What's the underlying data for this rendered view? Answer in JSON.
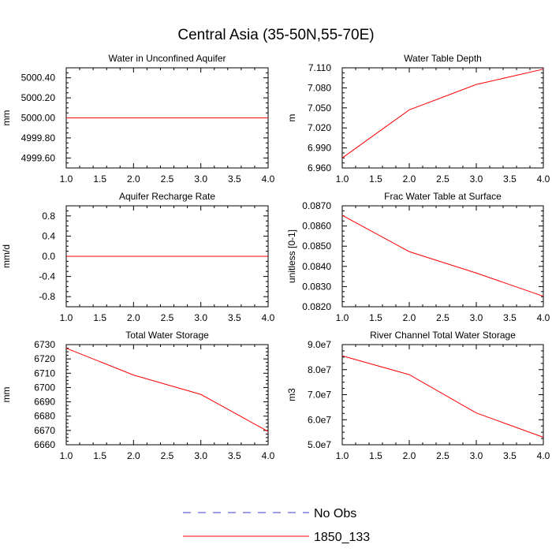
{
  "title": "Central Asia (35-50N,55-70E)",
  "legend": {
    "position": "bottom-center",
    "items": [
      {
        "label": "No Obs",
        "color": "#3a3acf",
        "dash": "dashed"
      },
      {
        "label": "1850_133",
        "color": "#ff0000",
        "dash": "solid"
      }
    ]
  },
  "chart_data": [
    {
      "type": "line",
      "title": "Water in Unconfined Aquifer",
      "ylabel": "mm",
      "x": [
        1.0,
        2.0,
        3.0,
        4.0
      ],
      "xlim": [
        1.0,
        4.0
      ],
      "xticks": [
        "1.0",
        "1.5",
        "2.0",
        "2.5",
        "3.0",
        "3.5",
        "4.0"
      ],
      "ylim": [
        4999.5,
        5000.5
      ],
      "yticks": [
        "5000.40",
        "5000.20",
        "5000.00",
        "4999.80",
        "4999.60"
      ],
      "series": [
        {
          "name": "1850_133",
          "color": "#ff0000",
          "values": [
            5000.0,
            5000.0,
            5000.0,
            5000.0
          ]
        }
      ]
    },
    {
      "type": "line",
      "title": "Water Table Depth",
      "ylabel": "m",
      "x": [
        1.0,
        2.0,
        3.0,
        4.0
      ],
      "xlim": [
        1.0,
        4.0
      ],
      "xticks": [
        "1.0",
        "1.5",
        "2.0",
        "2.5",
        "3.0",
        "3.5",
        "4.0"
      ],
      "ylim": [
        6.96,
        7.11
      ],
      "yticks": [
        "7.110",
        "7.080",
        "7.050",
        "7.020",
        "6.990",
        "6.960"
      ],
      "series": [
        {
          "name": "1850_133",
          "color": "#ff0000",
          "values": [
            6.975,
            7.047,
            7.085,
            7.108
          ]
        }
      ]
    },
    {
      "type": "line",
      "title": "Aquifer Recharge Rate",
      "ylabel": "mm/d",
      "x": [
        1.0,
        2.0,
        3.0,
        4.0
      ],
      "xlim": [
        1.0,
        4.0
      ],
      "xticks": [
        "1.0",
        "1.5",
        "2.0",
        "2.5",
        "3.0",
        "3.5",
        "4.0"
      ],
      "ylim": [
        -1.0,
        1.0
      ],
      "yticks": [
        "0.8",
        "0.4",
        "0.0",
        "-0.4",
        "-0.8"
      ],
      "series": [
        {
          "name": "1850_133",
          "color": "#ff0000",
          "values": [
            0.0,
            0.0,
            0.0,
            0.0
          ]
        }
      ]
    },
    {
      "type": "line",
      "title": "Frac Water Table at Surface",
      "ylabel": "unitless [0-1]",
      "x": [
        1.0,
        2.0,
        3.0,
        4.0
      ],
      "xlim": [
        1.0,
        4.0
      ],
      "xticks": [
        "1.0",
        "1.5",
        "2.0",
        "2.5",
        "3.0",
        "3.5",
        "4.0"
      ],
      "ylim": [
        0.082,
        0.087
      ],
      "yticks": [
        "0.0870",
        "0.0860",
        "0.0850",
        "0.0840",
        "0.0830",
        "0.0820"
      ],
      "series": [
        {
          "name": "1850_133",
          "color": "#ff0000",
          "values": [
            0.08653,
            0.08473,
            0.08367,
            0.08252
          ]
        }
      ]
    },
    {
      "type": "line",
      "title": "Total Water Storage",
      "ylabel": "mm",
      "x": [
        1.0,
        2.0,
        3.0,
        4.0
      ],
      "xlim": [
        1.0,
        4.0
      ],
      "xticks": [
        "1.0",
        "1.5",
        "2.0",
        "2.5",
        "3.0",
        "3.5",
        "4.0"
      ],
      "ylim": [
        6660,
        6730
      ],
      "yticks": [
        "6730",
        "6720",
        "6710",
        "6700",
        "6690",
        "6680",
        "6670",
        "6660"
      ],
      "series": [
        {
          "name": "1850_133",
          "color": "#ff0000",
          "values": [
            6727.5,
            6708.7,
            6695.2,
            6669.3
          ]
        }
      ]
    },
    {
      "type": "line",
      "title": "River Channel Total Water Storage",
      "ylabel": "m3",
      "x": [
        1.0,
        2.0,
        3.0,
        4.0
      ],
      "xlim": [
        1.0,
        4.0
      ],
      "xticks": [
        "1.0",
        "1.5",
        "2.0",
        "2.5",
        "3.0",
        "3.5",
        "4.0"
      ],
      "ylim": [
        50000000,
        90000000
      ],
      "yticks": [
        "9.0e7",
        "8.0e7",
        "7.0e7",
        "6.0e7",
        "5.0e7"
      ],
      "series": [
        {
          "name": "1850_133",
          "color": "#ff0000",
          "values": [
            85500000,
            78000000,
            62700000,
            53000000
          ]
        }
      ]
    }
  ]
}
